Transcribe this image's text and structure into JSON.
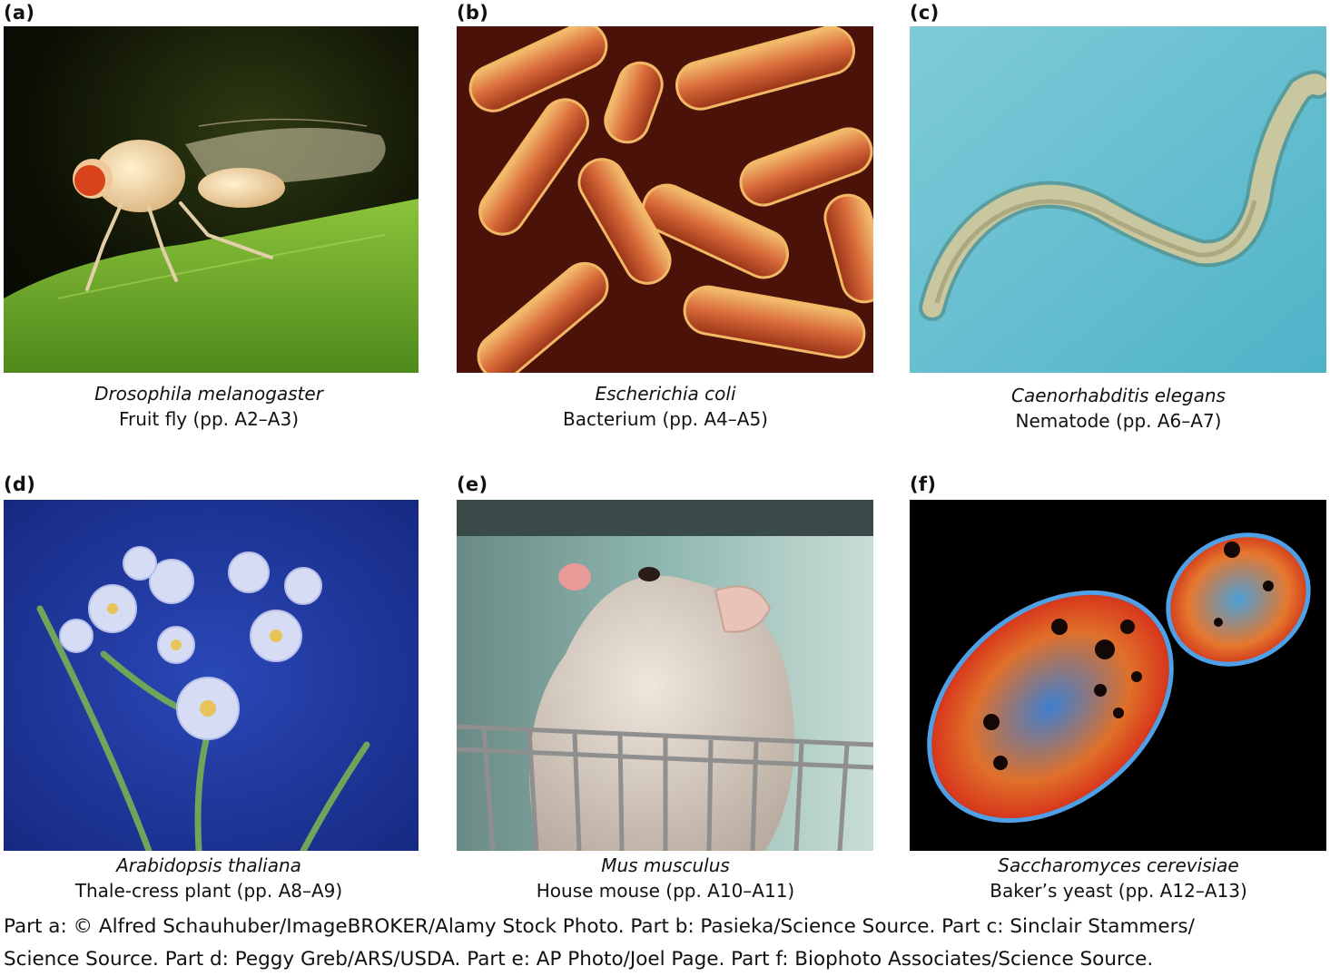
{
  "panels": [
    {
      "label": "(a)",
      "scientific_name": "Drosophila melanogaster",
      "common_name": "Fruit fly (pp. A2–A3)",
      "image": "fruit-fly-on-leaf"
    },
    {
      "label": "(b)",
      "scientific_name": "Escherichia coli",
      "common_name": "Bacterium (pp. A4–A5)",
      "image": "rod-shaped-bacteria-micrograph"
    },
    {
      "label": "(c)",
      "scientific_name": "Caenorhabditis elegans",
      "common_name": "Nematode (pp. A6–A7)",
      "image": "nematode-worm-micrograph"
    },
    {
      "label": "(d)",
      "scientific_name": "Arabidopsis thaliana",
      "common_name": "Thale-cress plant (pp. A8–A9)",
      "image": "white-flowers-blue-background"
    },
    {
      "label": "(e)",
      "scientific_name": "Mus musculus",
      "common_name": "House mouse (pp. A10–A11)",
      "image": "white-mouse-on-cage"
    },
    {
      "label": "(f)",
      "scientific_name": "Saccharomyces cerevisiae",
      "common_name": "Baker’s yeast (pp. A12–A13)",
      "image": "budding-yeast-cell-micrograph"
    }
  ],
  "credits": {
    "line1": "Part a: © Alfred Schauhuber/ImageBROKER/Alamy Stock Photo. Part b: Pasieka/Science Source. Part c: Sinclair Stammers/",
    "line2": "Science Source. Part d: Peggy Greb/ARS/USDA. Part e: AP Photo/Joel Page. Part f: Biophoto Associates/Science Source."
  }
}
